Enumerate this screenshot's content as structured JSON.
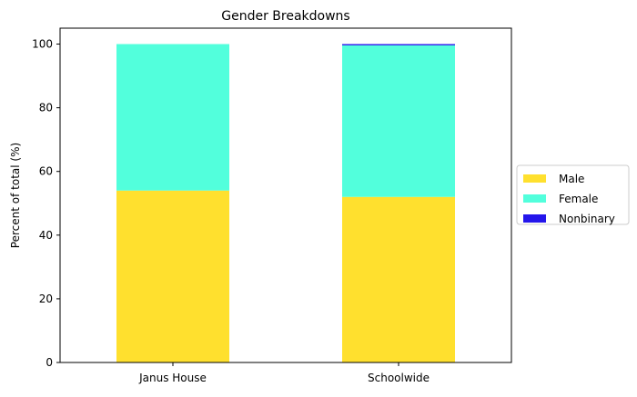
{
  "chart_data": {
    "type": "bar",
    "stacked": true,
    "title": "Gender Breakdowns",
    "xlabel": "",
    "ylabel": "Percent of total (%)",
    "categories": [
      "Janus House",
      "Schoolwide"
    ],
    "series": [
      {
        "name": "Male",
        "color": "#ffe02e",
        "values": [
          54,
          52
        ]
      },
      {
        "name": "Female",
        "color": "#52ffdc",
        "values": [
          46,
          47.6
        ]
      },
      {
        "name": "Nonbinary",
        "color": "#2416eb",
        "values": [
          0,
          0.4
        ]
      }
    ],
    "ylim": [
      0,
      105
    ],
    "yticks": [
      0,
      20,
      40,
      60,
      80,
      100
    ],
    "legend_position": "right",
    "grid": false
  }
}
